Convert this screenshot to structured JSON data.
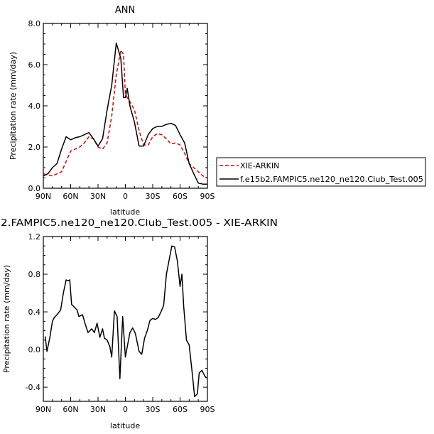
{
  "colors": {
    "model": "#000000",
    "obs": "#e00000",
    "frame": "#000000"
  },
  "chart_data": [
    {
      "type": "line",
      "title": "ANN",
      "xlabel": "latitude",
      "ylabel": "Precipitation rate (mm/day)",
      "x_direction": "north-to-south",
      "xlim": [
        90,
        -90
      ],
      "ylim": [
        0,
        8
      ],
      "xticks": [
        90,
        60,
        30,
        0,
        -30,
        -60,
        -90
      ],
      "xtick_labels": [
        "90N",
        "60N",
        "30N",
        "0",
        "30S",
        "60S",
        "90S"
      ],
      "yticks": [
        0,
        2,
        4,
        6,
        8
      ],
      "ytick_labels": [
        "0.0",
        "2.0",
        "4.0",
        "6.0",
        "8.0"
      ],
      "legend_position": "right",
      "series": [
        {
          "name": "XIE-ARKIN",
          "style": "dashed",
          "color": "#e00000",
          "x": [
            90,
            85,
            80,
            75,
            70,
            65,
            60,
            55,
            50,
            45,
            40,
            35,
            30,
            25,
            20,
            15,
            10,
            5,
            2,
            0,
            -2,
            -5,
            -10,
            -15,
            -20,
            -25,
            -30,
            -35,
            -40,
            -45,
            -50,
            -55,
            -60,
            -65,
            -70,
            -75,
            -80,
            -85,
            -90
          ],
          "y": [
            0.7,
            0.65,
            0.6,
            0.7,
            0.8,
            1.3,
            1.8,
            1.9,
            2.0,
            2.2,
            2.5,
            2.4,
            2.0,
            1.9,
            2.2,
            3.5,
            5.5,
            6.7,
            6.5,
            4.6,
            4.4,
            4.2,
            3.8,
            2.8,
            2.1,
            2.1,
            2.5,
            2.65,
            2.6,
            2.4,
            2.15,
            2.2,
            2.1,
            1.7,
            1.2,
            1.0,
            0.8,
            0.6,
            0.5
          ]
        },
        {
          "name": "f.e15b2.FAMPIC5.ne120_ne120.Club_Test.005",
          "style": "solid",
          "color": "#000000",
          "x": [
            90,
            85,
            80,
            75,
            70,
            65,
            60,
            55,
            50,
            45,
            40,
            35,
            30,
            25,
            20,
            15,
            10,
            5,
            2,
            0,
            -2,
            -5,
            -10,
            -15,
            -20,
            -25,
            -30,
            -35,
            -40,
            -45,
            -50,
            -55,
            -60,
            -65,
            -70,
            -75,
            -80,
            -85,
            -90
          ],
          "y": [
            0.6,
            0.7,
            1.0,
            1.2,
            1.9,
            2.5,
            2.35,
            2.45,
            2.5,
            2.6,
            2.7,
            2.4,
            2.05,
            2.4,
            3.8,
            5.0,
            7.05,
            6.3,
            4.4,
            4.4,
            4.85,
            4.0,
            3.2,
            2.05,
            2.05,
            2.6,
            2.9,
            3.0,
            3.0,
            3.1,
            3.15,
            3.05,
            2.6,
            2.2,
            1.2,
            0.7,
            0.25,
            0.2,
            0.2
          ]
        }
      ]
    },
    {
      "type": "line",
      "title": "2.FAMPIC5.ne120_ne120.Club_Test.005 - XIE-ARKIN",
      "xlabel": "latitude",
      "ylabel": "Precipitation rate (mm/day)",
      "x_direction": "north-to-south",
      "xlim": [
        90,
        -90
      ],
      "ylim": [
        -0.55,
        1.2
      ],
      "xticks": [
        90,
        60,
        30,
        0,
        -30,
        -60,
        -90
      ],
      "xtick_labels": [
        "90N",
        "60N",
        "30N",
        "0",
        "30S",
        "60S",
        "90S"
      ],
      "yticks": [
        -0.4,
        0,
        0.4,
        0.8,
        1.2
      ],
      "ytick_labels": [
        "-0.4",
        "0.0",
        "0.4",
        "0.8",
        "1.2"
      ],
      "series": [
        {
          "name": "",
          "style": "solid",
          "color": "#000000",
          "x": [
            88,
            86,
            83,
            80,
            78,
            75,
            71,
            68,
            65,
            63,
            61,
            59,
            55,
            53,
            51,
            47,
            44,
            41,
            37,
            34,
            31,
            28,
            25,
            23,
            20,
            17,
            15,
            12,
            9,
            6,
            3,
            0,
            -3,
            -5,
            -8,
            -11,
            -15,
            -18,
            -21,
            -24,
            -27,
            -30,
            -33,
            -36,
            -39,
            -42,
            -45,
            -48,
            -51,
            -54,
            -57,
            -60,
            -62,
            -64,
            -67,
            -70,
            -73,
            -76,
            -79,
            -81,
            -84,
            -87,
            -89
          ],
          "y": [
            0.14,
            -0.02,
            0.12,
            0.3,
            0.34,
            0.37,
            0.42,
            0.6,
            0.74,
            0.73,
            0.74,
            0.48,
            0.44,
            0.42,
            0.35,
            0.37,
            0.27,
            0.18,
            0.22,
            0.18,
            0.28,
            0.13,
            0.22,
            0.12,
            0.1,
            0.03,
            -0.08,
            0.41,
            0.35,
            -0.31,
            0.35,
            -0.08,
            0.08,
            0.18,
            0.23,
            0.17,
            -0.02,
            -0.05,
            0.12,
            0.2,
            0.31,
            0.33,
            0.32,
            0.34,
            0.4,
            0.47,
            0.8,
            0.95,
            1.1,
            1.09,
            0.94,
            0.67,
            0.8,
            0.46,
            0.1,
            0.05,
            -0.22,
            -0.5,
            -0.47,
            -0.25,
            -0.22,
            -0.28,
            -0.3
          ]
        }
      ]
    }
  ]
}
